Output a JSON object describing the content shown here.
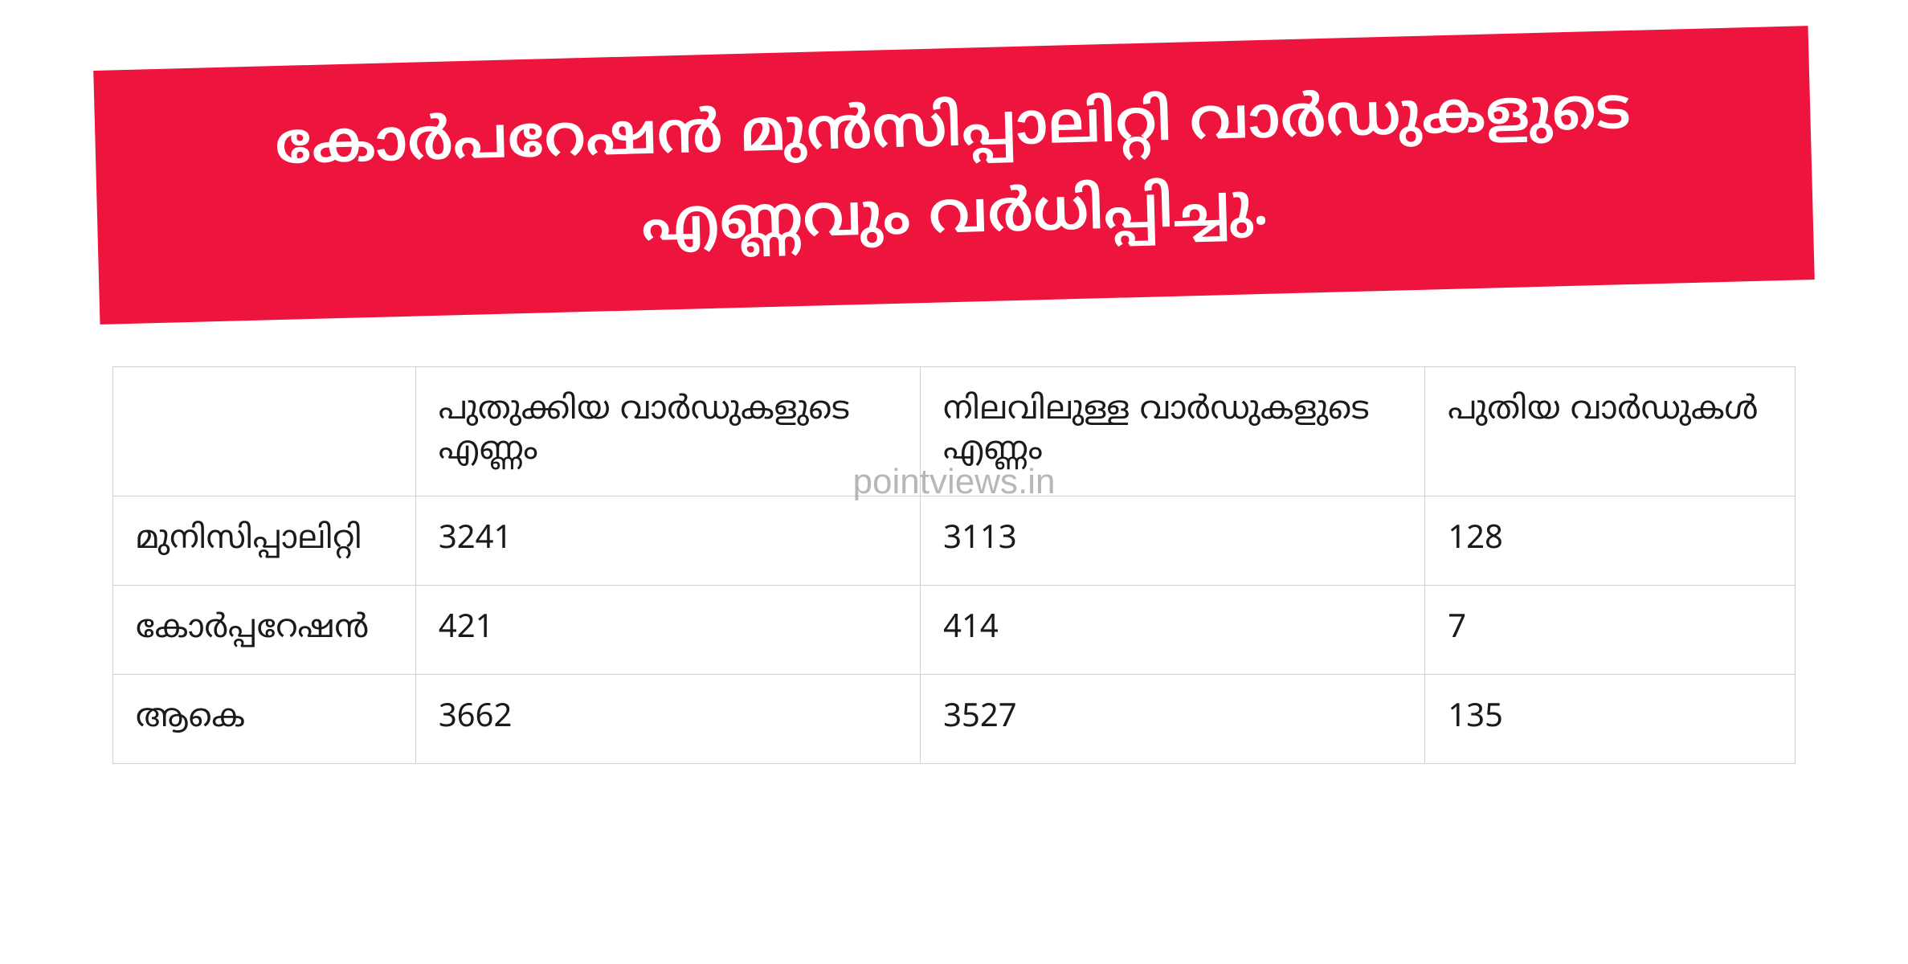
{
  "header": {
    "title": "കോർപറേഷൻ മുൻസിപ്പാലിറ്റി വാർഡുകളുടെ എണ്ണവും വർധിപ്പിച്ചു.",
    "background_color": "#ed153e",
    "text_color": "#ffffff",
    "fontsize": 72,
    "rotation_deg": -1.5
  },
  "table": {
    "type": "table",
    "border_color": "#d0d0d0",
    "text_color": "#1a1a1a",
    "cell_fontsize": 40,
    "columns": [
      "",
      "പുതുക്കിയ വാർഡുകളുടെ എണ്ണം",
      "നിലവിലുള്ള വാർഡുകളുടെ എണ്ണം",
      "പുതിയ വാർഡുകൾ"
    ],
    "column_widths_pct": [
      18,
      30,
      30,
      22
    ],
    "rows": [
      {
        "label": "മുനിസിപ്പാലിറ്റി",
        "updated": "3241",
        "existing": "3113",
        "new": "128"
      },
      {
        "label": "കോർപ്പറേഷൻ",
        "updated": "421",
        "existing": "414",
        "new": "7"
      },
      {
        "label": "ആകെ",
        "updated": "3662",
        "existing": "3527",
        "new": "135"
      }
    ]
  },
  "watermark": {
    "text": "pointviews.in",
    "color": "#999999",
    "fontsize": 44,
    "opacity": 0.7
  },
  "background_color": "#ffffff"
}
